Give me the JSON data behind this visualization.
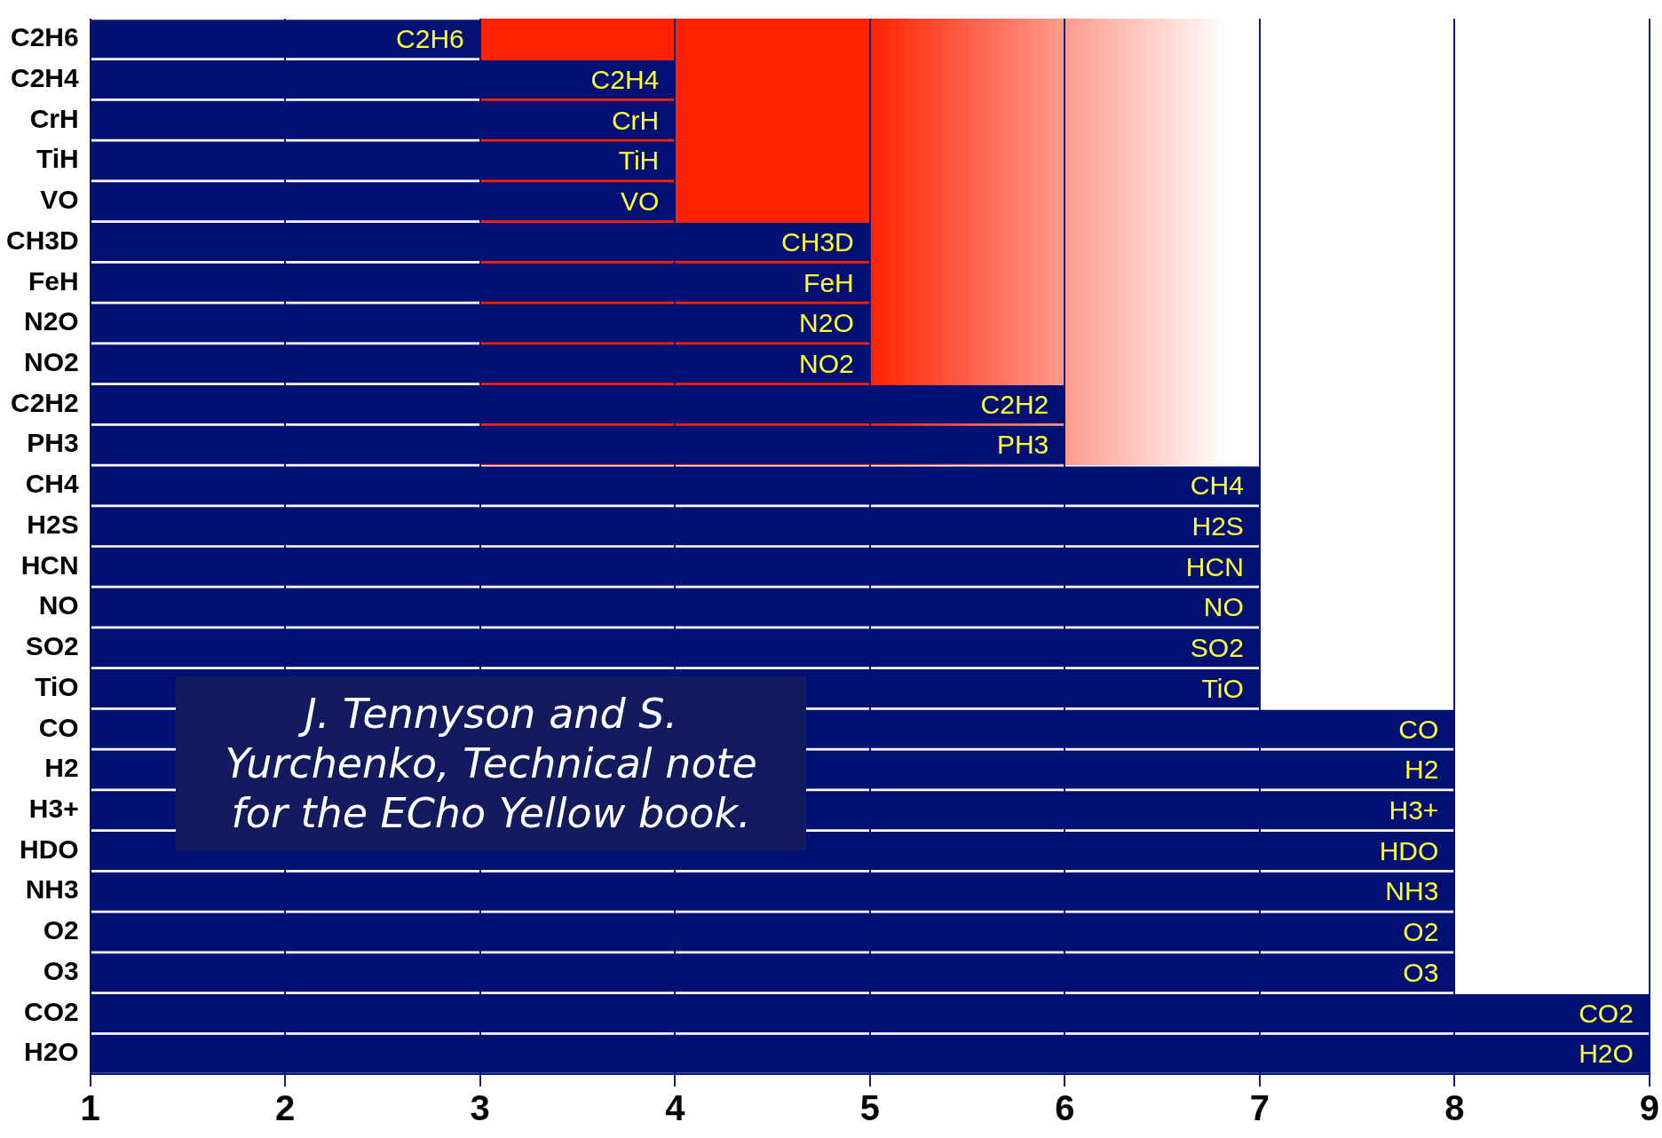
{
  "chart_data": {
    "type": "bar",
    "orientation": "horizontal",
    "categories": [
      "C2H6",
      "C2H4",
      "CrH",
      "TiH",
      "VO",
      "CH3D",
      "FeH",
      "N2O",
      "NO2",
      "C2H2",
      "PH3",
      "CH4",
      "H2S",
      "HCN",
      "NO",
      "SO2",
      "TiO",
      "CO",
      "H2",
      "H3+",
      "HDO",
      "NH3",
      "O2",
      "O3",
      "CO2",
      "H2O"
    ],
    "values": [
      3,
      4,
      4,
      4,
      4,
      5,
      5,
      5,
      5,
      6,
      6,
      7,
      7,
      7,
      7,
      7,
      7,
      8,
      8,
      8,
      8,
      8,
      8,
      8,
      9,
      9
    ],
    "value_labels": [
      "C2H6",
      "C2H4",
      "CrH",
      "TiH",
      "VO",
      "CH3D",
      "FeH",
      "N2O",
      "NO2",
      "C2H2",
      "PH3",
      "CH4",
      "H2S",
      "HCN",
      "NO",
      "SO2",
      "TiO",
      "CO",
      "H2",
      "H3+",
      "HDO",
      "NH3",
      "O2",
      "O3",
      "CO2",
      "H2O"
    ],
    "color": "#021073",
    "xlim": [
      1,
      9
    ],
    "xticks": [
      1,
      2,
      3,
      4,
      5,
      6,
      7,
      8,
      9
    ],
    "grid": "x",
    "legend": false,
    "annotations": [
      "J. Tennyson and S. Yurchenko, Technical note for the ECho Yellow book."
    ]
  }
}
